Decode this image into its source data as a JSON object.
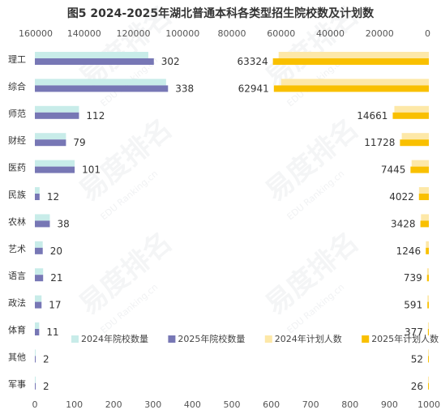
{
  "chart_data": {
    "type": "bar",
    "title": "图5 2024-2025年湖北普通本科各类型招生院校数及计划数",
    "categories": [
      "理工",
      "综合",
      "师范",
      "财经",
      "医药",
      "民族",
      "农林",
      "艺术",
      "语言",
      "政法",
      "体育",
      "其他",
      "军事"
    ],
    "series": [
      {
        "name": "2024年院校数量",
        "axis": "bottom",
        "color": "#c8ece9",
        "values": [
          288,
          333,
          112,
          79,
          101,
          12,
          38,
          20,
          21,
          17,
          11,
          2,
          2
        ]
      },
      {
        "name": "2025年院校数量",
        "axis": "bottom",
        "color": "#7777b5",
        "values": [
          302,
          338,
          112,
          79,
          101,
          12,
          38,
          20,
          21,
          17,
          11,
          2,
          2
        ]
      },
      {
        "name": "2024年计划人数",
        "axis": "top",
        "color": "#fde8a8",
        "values": [
          61000,
          60000,
          14000,
          11000,
          7000,
          4000,
          3200,
          1200,
          700,
          560,
          360,
          50,
          25
        ]
      },
      {
        "name": "2025年计划人数",
        "axis": "top",
        "color": "#f9c000",
        "values": [
          63324,
          62941,
          14661,
          11728,
          7445,
          4022,
          3428,
          1246,
          739,
          591,
          377,
          52,
          26
        ]
      }
    ],
    "labeled_series": [
      "2025年院校数量",
      "2025年计划人数"
    ],
    "x_bottom": {
      "range": [
        0,
        1000
      ],
      "ticks": [
        0,
        100,
        200,
        300,
        400,
        500,
        600,
        700,
        800,
        900,
        1000
      ]
    },
    "x_top": {
      "range": [
        0,
        160000
      ],
      "reversed": true,
      "ticks": [
        160000,
        140000,
        120000,
        100000,
        80000,
        60000,
        40000,
        20000,
        0
      ]
    },
    "legend_position": "bottom-center",
    "grid": false
  },
  "watermark": {
    "brand": "易度排名",
    "sub": "EDU Ranking.cn"
  }
}
